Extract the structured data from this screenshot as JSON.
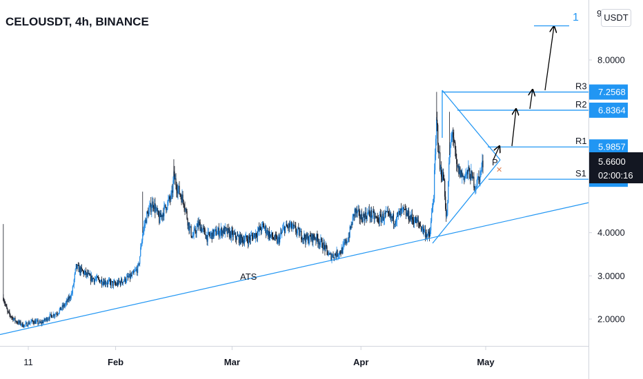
{
  "symbol_title": "CELOUSDT, 4h, BINANCE",
  "currency_button": "USDT",
  "price_scale_top_partial": "9",
  "wave_label": "1",
  "colors": {
    "up": "#1e88e5",
    "down": "#131722",
    "accent": "#2196f3",
    "last_price_bg": "#131722",
    "arrow": "#000000",
    "x_marker": "#e07a47"
  },
  "chart_data": {
    "type": "candlestick",
    "title": "CELOUSDT, 4h, BINANCE",
    "ylim": [
      1.45,
      9.05
    ],
    "y_ticks": [
      {
        "value": 2,
        "label": "2.0000"
      },
      {
        "value": 3,
        "label": "3.0000"
      },
      {
        "value": 4,
        "label": "4.0000"
      },
      {
        "value": 8,
        "label": "8.0000"
      }
    ],
    "x_ticks": [
      {
        "day": 11,
        "label": "11"
      },
      {
        "day": 32,
        "label": "Feb"
      },
      {
        "day": 60,
        "label": "Mar"
      },
      {
        "day": 91,
        "label": "Apr"
      },
      {
        "day": 121,
        "label": "May"
      }
    ],
    "price_anchors": [
      [
        5.0,
        2.5
      ],
      [
        6.0,
        2.15
      ],
      [
        8.0,
        1.95
      ],
      [
        10.0,
        1.85
      ],
      [
        12.0,
        1.95
      ],
      [
        14.0,
        1.9
      ],
      [
        16.0,
        2.05
      ],
      [
        18.0,
        2.15
      ],
      [
        20.0,
        2.35
      ],
      [
        21.5,
        2.6
      ],
      [
        22.5,
        3.2
      ],
      [
        24.0,
        3.1
      ],
      [
        26.0,
        2.95
      ],
      [
        28.0,
        2.9
      ],
      [
        30.0,
        2.85
      ],
      [
        32.0,
        2.8
      ],
      [
        34.0,
        2.9
      ],
      [
        36.0,
        3.0
      ],
      [
        37.5,
        3.2
      ],
      [
        38.5,
        4.0
      ],
      [
        39.5,
        4.4
      ],
      [
        41.0,
        4.7
      ],
      [
        42.5,
        4.3
      ],
      [
        44.0,
        4.6
      ],
      [
        45.5,
        4.85
      ],
      [
        46.0,
        5.3
      ],
      [
        47.0,
        5.0
      ],
      [
        48.5,
        4.7
      ],
      [
        49.5,
        4.2
      ],
      [
        50.5,
        3.9
      ],
      [
        52.0,
        4.2
      ],
      [
        54.0,
        3.9
      ],
      [
        56.0,
        4.0
      ],
      [
        58.0,
        4.05
      ],
      [
        60.0,
        3.95
      ],
      [
        62.0,
        3.85
      ],
      [
        64.0,
        3.85
      ],
      [
        66.0,
        4.0
      ],
      [
        67.5,
        4.15
      ],
      [
        69.0,
        3.95
      ],
      [
        71.0,
        3.8
      ],
      [
        72.5,
        4.1
      ],
      [
        74.0,
        4.15
      ],
      [
        76.0,
        4.0
      ],
      [
        78.0,
        3.85
      ],
      [
        80.0,
        3.9
      ],
      [
        82.0,
        3.7
      ],
      [
        83.5,
        3.45
      ],
      [
        85.0,
        3.5
      ],
      [
        86.5,
        3.6
      ],
      [
        88.0,
        3.9
      ],
      [
        89.5,
        4.5
      ],
      [
        91.0,
        4.35
      ],
      [
        93.0,
        4.45
      ],
      [
        95.0,
        4.3
      ],
      [
        97.0,
        4.4
      ],
      [
        99.0,
        4.3
      ],
      [
        101.0,
        4.5
      ],
      [
        103.0,
        4.35
      ],
      [
        105.0,
        4.2
      ],
      [
        106.5,
        4.0
      ],
      [
        107.5,
        3.9
      ],
      [
        108.5,
        4.9
      ],
      [
        109.2,
        6.6
      ],
      [
        110.0,
        5.5
      ],
      [
        111.0,
        5.2
      ],
      [
        111.6,
        4.2
      ],
      [
        112.3,
        5.8
      ],
      [
        113.0,
        6.4
      ],
      [
        114.0,
        5.5
      ],
      [
        115.5,
        5.3
      ],
      [
        117.0,
        5.4
      ],
      [
        118.5,
        5.1
      ],
      [
        119.5,
        5.3
      ],
      [
        120.0,
        5.5
      ],
      [
        120.5,
        5.66
      ]
    ],
    "trendline_label": "ATS",
    "trendline": [
      [
        0,
        1.55
      ],
      [
        139,
        4.55
      ]
    ],
    "levels": [
      {
        "name": "R3",
        "value": 7.2568,
        "label": "7.2568"
      },
      {
        "name": "R2",
        "value": 6.8364,
        "label": "6.8364"
      },
      {
        "name": "R1",
        "value": 5.9857,
        "label": "5.9857"
      },
      {
        "name": "S1",
        "value": 5.2371,
        "label": "5.2371"
      }
    ],
    "last_price": {
      "value": 5.66,
      "label": "5.6600",
      "countdown": "02:00:16"
    },
    "pivot_label": "P",
    "wave_target": 8.8
  }
}
